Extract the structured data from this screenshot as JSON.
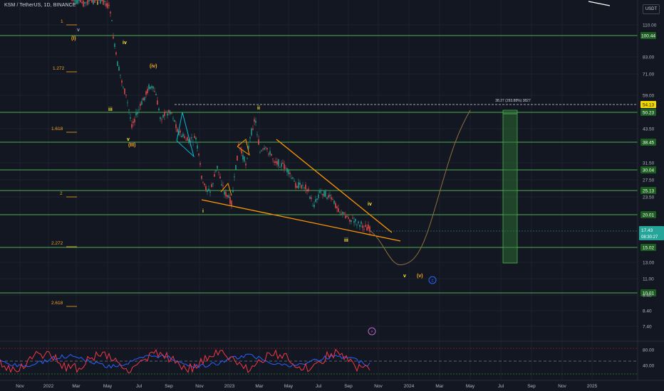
{
  "header": {
    "symbol_title": "KSM / TetherUS, 1D, BINANCE",
    "currency_button": "USDT"
  },
  "price_axis": {
    "ticks": [
      "110.00",
      "83.00",
      "71.00",
      "59.00",
      "43.50",
      "31.50",
      "27.50",
      "23.50",
      "13.00",
      "11.00",
      "9.40",
      "8.40",
      "7.40"
    ],
    "level_badges": [
      "100.44",
      "54.13",
      "50.23",
      "38.45",
      "30.04",
      "25.13",
      "20.01",
      "15.02",
      "10.01"
    ],
    "current_price": "17.43",
    "countdown": "08:30:27"
  },
  "indicator_axis": {
    "ticks": [
      "80.00",
      "40.00"
    ]
  },
  "time_axis": {
    "ticks": [
      "Nov",
      "2022",
      "Mar",
      "May",
      "Jul",
      "Sep",
      "Nov",
      "2023",
      "Mar",
      "May",
      "Jul",
      "Sep",
      "Nov",
      "2024",
      "Mar",
      "May",
      "Jul",
      "Sep",
      "Nov",
      "2025"
    ]
  },
  "fib_labels": [
    "1",
    "1.272",
    "1.618",
    "2",
    "2.272",
    "2.618"
  ],
  "wave_labels": {
    "i_top": "i",
    "v_small": "v",
    "paren_i": "(I)",
    "iv": "iv",
    "paren_iv": "(iv)",
    "iii": "iii",
    "v": "v",
    "paren_iii": "(III)",
    "i": "i",
    "ii": "ii",
    "iv_right": "iv",
    "iii_right": "iii",
    "v_proj": "v",
    "paren_v": "(v)",
    "c_circle": "c"
  },
  "target_label": "38.27 (293.88%) 3827",
  "colors": {
    "background": "#131722",
    "level_line": "#4caf50",
    "level_badge": "#1b5e20",
    "wedge": "#ff9800",
    "fib_text": "#f5a623",
    "wave_label": "#ffeb3b",
    "candle_up": "#26a69a",
    "candle_down": "#ef5350",
    "target_box": "#2e7d32",
    "rsi_red": "#f23645",
    "rsi_blue": "#2962ff",
    "current_price": "#26a69a"
  }
}
